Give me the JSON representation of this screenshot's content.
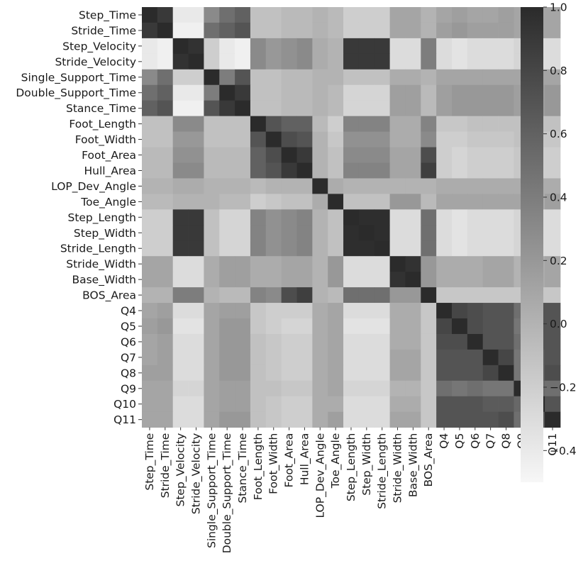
{
  "chart_data": {
    "type": "heatmap",
    "title": "",
    "xlabel": "",
    "ylabel": "",
    "labels": [
      "Step_Time",
      "Stride_Time",
      "Step_Velocity",
      "Stride_Velocity",
      "Single_Support_Time",
      "Double_Support_Time",
      "Stance_Time",
      "Foot_Length",
      "Foot_Width",
      "Foot_Area",
      "Hull_Area",
      "LOP_Dev_Angle",
      "Toe_Angle",
      "Step_Length",
      "Step_Width",
      "Stride_Length",
      "Stride_Width",
      "Base_Width",
      "BOS_Area",
      "Q4",
      "Q5",
      "Q6",
      "Q7",
      "Q8",
      "Q9",
      "Q10",
      "Q11"
    ],
    "values": [
      [
        1.0,
        0.9,
        -0.4,
        -0.4,
        0.3,
        0.5,
        0.6,
        -0.1,
        -0.1,
        -0.05,
        -0.05,
        0.0,
        -0.05,
        -0.2,
        -0.2,
        -0.2,
        0.1,
        0.1,
        0.0,
        0.1,
        0.15,
        0.1,
        0.1,
        0.15,
        0.1,
        0.1,
        0.1
      ],
      [
        0.9,
        1.0,
        -0.45,
        -0.45,
        0.5,
        0.6,
        0.7,
        -0.1,
        -0.1,
        -0.05,
        -0.05,
        0.0,
        -0.05,
        -0.2,
        -0.2,
        -0.2,
        0.1,
        0.1,
        0.0,
        0.15,
        0.2,
        0.15,
        0.15,
        0.15,
        0.1,
        0.1,
        0.1
      ],
      [
        -0.4,
        -0.45,
        1.0,
        0.95,
        -0.2,
        -0.4,
        -0.45,
        0.3,
        0.2,
        0.25,
        0.3,
        0.05,
        0.0,
        0.9,
        0.9,
        0.9,
        -0.3,
        -0.3,
        0.4,
        -0.3,
        -0.35,
        -0.3,
        -0.3,
        -0.3,
        -0.25,
        -0.3,
        -0.3
      ],
      [
        -0.4,
        -0.45,
        0.95,
        1.0,
        -0.2,
        -0.4,
        -0.45,
        0.3,
        0.2,
        0.25,
        0.3,
        0.05,
        0.0,
        0.9,
        0.9,
        0.9,
        -0.3,
        -0.3,
        0.4,
        -0.3,
        -0.35,
        -0.3,
        -0.3,
        -0.3,
        -0.25,
        -0.3,
        -0.3
      ],
      [
        0.3,
        0.5,
        -0.2,
        -0.2,
        1.0,
        0.4,
        0.7,
        -0.1,
        -0.1,
        -0.05,
        -0.05,
        0.0,
        0.0,
        -0.1,
        -0.1,
        -0.1,
        0.05,
        0.05,
        0.0,
        0.1,
        0.1,
        0.1,
        0.1,
        0.1,
        0.1,
        0.1,
        0.1
      ],
      [
        0.5,
        0.6,
        -0.4,
        -0.4,
        0.4,
        1.0,
        0.9,
        -0.1,
        -0.1,
        -0.05,
        -0.05,
        0.0,
        -0.05,
        -0.25,
        -0.25,
        -0.25,
        0.15,
        0.15,
        -0.05,
        0.15,
        0.2,
        0.2,
        0.2,
        0.2,
        0.15,
        0.15,
        0.2
      ],
      [
        0.6,
        0.7,
        -0.45,
        -0.45,
        0.7,
        0.9,
        1.0,
        -0.1,
        -0.1,
        -0.05,
        -0.05,
        0.0,
        -0.05,
        -0.25,
        -0.25,
        -0.25,
        0.15,
        0.15,
        -0.05,
        0.15,
        0.2,
        0.2,
        0.2,
        0.2,
        0.15,
        0.15,
        0.2
      ],
      [
        -0.1,
        -0.1,
        0.3,
        0.3,
        -0.1,
        -0.1,
        -0.1,
        1.0,
        0.7,
        0.6,
        0.6,
        -0.05,
        -0.2,
        0.35,
        0.35,
        0.35,
        0.05,
        0.05,
        0.35,
        -0.15,
        -0.15,
        -0.1,
        -0.1,
        -0.1,
        -0.1,
        -0.1,
        -0.1
      ],
      [
        -0.1,
        -0.1,
        0.2,
        0.2,
        -0.1,
        -0.1,
        -0.1,
        0.7,
        1.0,
        0.75,
        0.7,
        0.0,
        -0.15,
        0.25,
        0.25,
        0.25,
        0.05,
        0.05,
        0.3,
        -0.2,
        -0.2,
        -0.15,
        -0.15,
        -0.15,
        -0.1,
        -0.15,
        -0.15
      ],
      [
        -0.05,
        -0.05,
        0.25,
        0.25,
        -0.05,
        -0.05,
        -0.05,
        0.6,
        0.75,
        1.0,
        0.9,
        0.0,
        -0.1,
        0.3,
        0.3,
        0.3,
        0.1,
        0.1,
        0.75,
        -0.2,
        -0.25,
        -0.2,
        -0.2,
        -0.2,
        -0.15,
        -0.2,
        -0.2
      ],
      [
        -0.05,
        -0.05,
        0.3,
        0.3,
        -0.05,
        -0.05,
        -0.05,
        0.6,
        0.7,
        0.9,
        1.0,
        0.0,
        -0.1,
        0.35,
        0.35,
        0.35,
        0.1,
        0.1,
        0.85,
        -0.2,
        -0.25,
        -0.2,
        -0.2,
        -0.2,
        -0.15,
        -0.2,
        -0.2
      ],
      [
        0.0,
        0.0,
        0.05,
        0.05,
        0.0,
        0.0,
        0.0,
        -0.05,
        0.0,
        0.0,
        0.0,
        1.0,
        0.05,
        0.0,
        0.0,
        0.0,
        0.0,
        0.0,
        0.0,
        0.05,
        0.05,
        0.05,
        0.05,
        0.05,
        0.05,
        0.05,
        0.05
      ],
      [
        -0.05,
        -0.05,
        0.0,
        0.0,
        0.0,
        -0.05,
        -0.05,
        -0.2,
        -0.15,
        -0.1,
        -0.1,
        0.05,
        1.0,
        -0.1,
        -0.1,
        -0.1,
        0.2,
        0.2,
        -0.05,
        0.1,
        0.1,
        0.1,
        0.1,
        0.1,
        0.1,
        0.05,
        0.15
      ],
      [
        -0.2,
        -0.2,
        0.9,
        0.9,
        -0.1,
        -0.25,
        -0.25,
        0.35,
        0.25,
        0.3,
        0.35,
        0.0,
        -0.1,
        1.0,
        0.98,
        0.98,
        -0.3,
        -0.3,
        0.5,
        -0.3,
        -0.35,
        -0.3,
        -0.3,
        -0.3,
        -0.25,
        -0.3,
        -0.3
      ],
      [
        -0.2,
        -0.2,
        0.9,
        0.9,
        -0.1,
        -0.25,
        -0.25,
        0.35,
        0.25,
        0.3,
        0.35,
        0.0,
        -0.1,
        0.98,
        1.0,
        0.98,
        -0.3,
        -0.3,
        0.5,
        -0.3,
        -0.35,
        -0.3,
        -0.3,
        -0.3,
        -0.25,
        -0.3,
        -0.3
      ],
      [
        -0.2,
        -0.2,
        0.9,
        0.9,
        -0.1,
        -0.25,
        -0.25,
        0.35,
        0.25,
        0.3,
        0.35,
        0.0,
        -0.1,
        0.98,
        0.98,
        1.0,
        -0.3,
        -0.3,
        0.5,
        -0.3,
        -0.35,
        -0.3,
        -0.3,
        -0.3,
        -0.25,
        -0.3,
        -0.3
      ],
      [
        0.1,
        0.1,
        -0.3,
        -0.3,
        0.05,
        0.15,
        0.15,
        0.05,
        0.05,
        0.1,
        0.1,
        0.0,
        0.2,
        -0.3,
        -0.3,
        -0.3,
        1.0,
        0.95,
        0.2,
        0.05,
        0.05,
        0.05,
        0.1,
        0.1,
        0.0,
        0.05,
        0.1
      ],
      [
        0.1,
        0.1,
        -0.3,
        -0.3,
        0.05,
        0.15,
        0.15,
        0.05,
        0.05,
        0.1,
        0.1,
        0.0,
        0.2,
        -0.3,
        -0.3,
        -0.3,
        0.95,
        1.0,
        0.2,
        0.05,
        0.05,
        0.05,
        0.1,
        0.1,
        0.0,
        0.05,
        0.1
      ],
      [
        0.0,
        0.0,
        0.4,
        0.4,
        0.0,
        -0.05,
        -0.05,
        0.35,
        0.3,
        0.75,
        0.85,
        0.0,
        -0.05,
        0.5,
        0.5,
        0.5,
        0.2,
        0.2,
        1.0,
        -0.15,
        -0.15,
        -0.15,
        -0.15,
        -0.15,
        -0.15,
        -0.15,
        -0.15
      ],
      [
        0.1,
        0.15,
        -0.3,
        -0.3,
        0.1,
        0.15,
        0.15,
        -0.15,
        -0.2,
        -0.2,
        -0.2,
        0.05,
        0.1,
        -0.3,
        -0.3,
        -0.3,
        0.05,
        0.05,
        -0.15,
        1.0,
        0.8,
        0.75,
        0.7,
        0.7,
        0.5,
        0.7,
        0.7
      ],
      [
        0.15,
        0.2,
        -0.35,
        -0.35,
        0.1,
        0.2,
        0.2,
        -0.15,
        -0.2,
        -0.25,
        -0.25,
        0.05,
        0.1,
        -0.35,
        -0.35,
        -0.35,
        0.05,
        0.05,
        -0.15,
        0.8,
        1.0,
        0.75,
        0.7,
        0.7,
        0.45,
        0.7,
        0.7
      ],
      [
        0.1,
        0.15,
        -0.3,
        -0.3,
        0.1,
        0.2,
        0.2,
        -0.1,
        -0.15,
        -0.2,
        -0.2,
        0.05,
        0.1,
        -0.3,
        -0.3,
        -0.3,
        0.05,
        0.05,
        -0.15,
        0.75,
        0.75,
        1.0,
        0.7,
        0.7,
        0.5,
        0.7,
        0.7
      ],
      [
        0.1,
        0.15,
        -0.3,
        -0.3,
        0.1,
        0.2,
        0.2,
        -0.1,
        -0.15,
        -0.2,
        -0.2,
        0.05,
        0.1,
        -0.3,
        -0.3,
        -0.3,
        0.1,
        0.1,
        -0.15,
        0.7,
        0.7,
        0.7,
        1.0,
        0.8,
        0.45,
        0.65,
        0.7
      ],
      [
        0.15,
        0.15,
        -0.3,
        -0.3,
        0.1,
        0.2,
        0.2,
        -0.1,
        -0.15,
        -0.2,
        -0.2,
        0.05,
        0.1,
        -0.3,
        -0.3,
        -0.3,
        0.1,
        0.1,
        -0.15,
        0.7,
        0.7,
        0.7,
        0.8,
        1.0,
        0.45,
        0.65,
        0.75
      ],
      [
        0.1,
        0.1,
        -0.25,
        -0.25,
        0.1,
        0.15,
        0.15,
        -0.1,
        -0.1,
        -0.15,
        -0.15,
        0.05,
        0.1,
        -0.25,
        -0.25,
        -0.25,
        0.0,
        0.0,
        -0.15,
        0.5,
        0.45,
        0.5,
        0.45,
        0.45,
        1.0,
        0.55,
        0.5
      ],
      [
        0.1,
        0.1,
        -0.3,
        -0.3,
        0.1,
        0.15,
        0.15,
        -0.1,
        -0.15,
        -0.2,
        -0.2,
        0.05,
        0.05,
        -0.3,
        -0.3,
        -0.3,
        0.05,
        0.05,
        -0.15,
        0.7,
        0.7,
        0.7,
        0.65,
        0.65,
        0.55,
        1.0,
        0.7
      ],
      [
        0.1,
        0.1,
        -0.3,
        -0.3,
        0.1,
        0.2,
        0.2,
        -0.1,
        -0.15,
        -0.2,
        -0.2,
        0.05,
        0.15,
        -0.3,
        -0.3,
        -0.3,
        0.1,
        0.1,
        -0.15,
        0.7,
        0.7,
        0.7,
        0.7,
        0.75,
        0.5,
        0.7,
        1.0
      ]
    ],
    "colorbar": {
      "vmin": -0.5,
      "vmax": 1.0,
      "ticks": [
        1.0,
        0.8,
        0.6,
        0.4,
        0.2,
        0.0,
        -0.2,
        -0.4
      ],
      "tick_labels": [
        "1.0",
        "0.8",
        "0.6",
        "0.4",
        "0.2",
        "0.0",
        "−0.2",
        "−0.4"
      ],
      "color_low": "#f7f7f7",
      "color_high": "#2b2b2b"
    },
    "legend": "colorbar-right"
  }
}
